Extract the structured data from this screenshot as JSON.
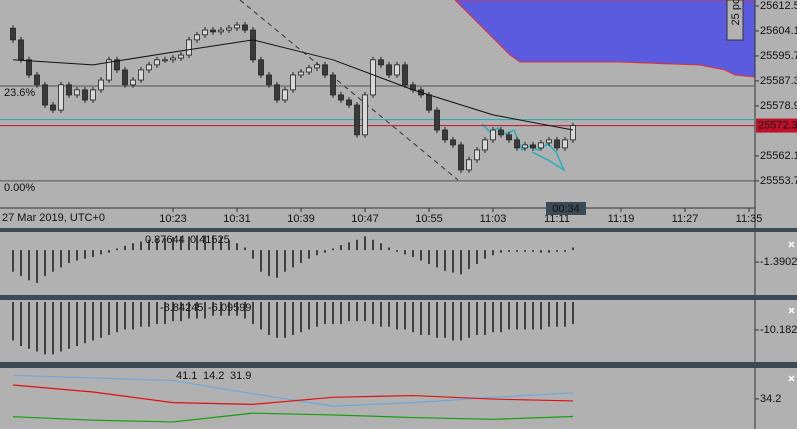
{
  "chart_data": [
    {
      "type": "candlestick",
      "date_label": "27 Mar 2019, UTC+0",
      "x": [
        0,
        1,
        2,
        3,
        4,
        5,
        6,
        7,
        8,
        9,
        10,
        11,
        12,
        13,
        14,
        15,
        16,
        17,
        18,
        19,
        20,
        21,
        22,
        23,
        24,
        25,
        26,
        27,
        28,
        29,
        30,
        31,
        32,
        33,
        34,
        35,
        36,
        37,
        38,
        39,
        40,
        41,
        42,
        43,
        44,
        45,
        46,
        47,
        48,
        49,
        50,
        51,
        52,
        53,
        54,
        55,
        56,
        57,
        58,
        59,
        60,
        61,
        62,
        63,
        64,
        65,
        66,
        67,
        68,
        69,
        70
      ],
      "open": [
        25605.0,
        25601.1,
        25594.4,
        25589.3,
        25586.0,
        25579.2,
        25577.5,
        25586.0,
        25582.6,
        25584.3,
        25580.9,
        25584.3,
        25587.6,
        25594.4,
        25591.0,
        25586.0,
        25587.6,
        25591.0,
        25592.7,
        25594.4,
        25594.4,
        25595.0,
        25596.0,
        25601.1,
        25602.8,
        25604.4,
        25603.8,
        25604.4,
        25605.1,
        25606.1,
        25604.4,
        25594.4,
        25589.3,
        25586.0,
        25580.9,
        25584.3,
        25589.3,
        25590.3,
        25591.7,
        25592.7,
        25589.3,
        25582.6,
        25580.9,
        25579.2,
        25569.2,
        25582.6,
        25594.4,
        25592.7,
        25589.3,
        25592.7,
        25586.0,
        25584.3,
        25582.6,
        25577.5,
        25570.8,
        25567.5,
        25565.8,
        25557.4,
        25560.8,
        25564.1,
        25567.5,
        25570.8,
        25569.2,
        25567.5,
        25564.8,
        25565.8,
        25564.8,
        25566.5,
        25567.5,
        25564.8,
        25567.5
      ],
      "close": [
        25601.1,
        25594.4,
        25589.3,
        25586.0,
        25579.2,
        25577.5,
        25586.0,
        25582.6,
        25584.3,
        25580.9,
        25584.3,
        25587.6,
        25594.4,
        25591.0,
        25586.0,
        25587.6,
        25591.0,
        25592.7,
        25594.4,
        25594.4,
        25595.0,
        25596.0,
        25601.1,
        25602.8,
        25604.4,
        25603.8,
        25604.4,
        25605.1,
        25606.1,
        25604.4,
        25594.4,
        25589.3,
        25586.0,
        25580.9,
        25584.3,
        25589.3,
        25590.3,
        25591.7,
        25592.7,
        25589.3,
        25582.6,
        25580.9,
        25579.2,
        25569.2,
        25582.6,
        25594.4,
        25592.7,
        25589.3,
        25592.7,
        25586.0,
        25584.3,
        25582.6,
        25577.5,
        25570.8,
        25567.5,
        25565.8,
        25557.4,
        25560.8,
        25564.1,
        25567.5,
        25570.8,
        25569.2,
        25567.5,
        25564.8,
        25565.8,
        25564.8,
        25566.5,
        25567.5,
        25564.8,
        25567.5,
        25572.3
      ],
      "ma": {
        "x": [
          0,
          10,
          20,
          30,
          40,
          50,
          60,
          70
        ],
        "values": [
          25594.4,
          25592.7,
          25597.0,
          25601.1,
          25594.4,
          25584.3,
          25575.9,
          25570.8
        ]
      },
      "xlim": [
        -1.625,
        92.75
      ],
      "xticks": [
        {
          "value": 20,
          "label": "10:23"
        },
        {
          "value": 28,
          "label": "10:31"
        },
        {
          "value": 36,
          "label": "10:39"
        },
        {
          "value": 44,
          "label": "10:47"
        },
        {
          "value": 52,
          "label": "10:55"
        },
        {
          "value": 60,
          "label": "11:03"
        },
        {
          "value": 68,
          "label": "11:11"
        },
        {
          "value": 76,
          "label": "11:19"
        },
        {
          "value": 84,
          "label": "11:27"
        },
        {
          "value": 92,
          "label": "11:35"
        }
      ],
      "ylim": [
        25544.6,
        25614.5
      ],
      "yticks": [
        25612.5,
        25604.1,
        25595.7,
        25587.3,
        25578.9,
        25562.1,
        25553.7
      ],
      "last_price": 25572.3,
      "cyan_level": 25574.3,
      "fib_levels": [
        {
          "label": "23.6%",
          "price": 25585.6
        },
        {
          "label": "0.00%",
          "price": 25553.7
        }
      ],
      "cloud_label": "25 pc",
      "countdown": "00:34"
    },
    {
      "type": "histogram",
      "x": [
        0,
        1,
        2,
        3,
        4,
        5,
        6,
        7,
        8,
        9,
        10,
        11,
        12,
        13,
        14,
        15,
        16,
        17,
        18,
        19,
        20,
        21,
        22,
        23,
        24,
        25,
        26,
        27,
        28,
        29,
        30,
        31,
        32,
        33,
        34,
        35,
        36,
        37,
        38,
        39,
        40,
        41,
        42,
        43,
        44,
        45,
        46,
        47,
        48,
        49,
        50,
        51,
        52,
        53,
        54,
        55,
        56,
        57,
        58,
        59,
        60,
        61,
        62,
        63,
        64,
        65,
        66,
        67,
        68,
        69,
        70
      ],
      "values": [
        -2.5,
        -3,
        -3.5,
        -3.8,
        -3,
        -2.5,
        -2,
        -1.5,
        -1.2,
        -1,
        -0.8,
        -0.5,
        -0.3,
        0.2,
        0.5,
        0.8,
        1,
        1.2,
        1.3,
        1.4,
        1.5,
        1.6,
        1.6,
        1.7,
        1.7,
        1.6,
        1.5,
        1.2,
        0.8,
        0.3,
        -1,
        -2.5,
        -3,
        -3.2,
        -2.5,
        -2,
        -1.5,
        -1,
        -0.6,
        -0.3,
        0.2,
        0.6,
        0.9,
        1.2,
        1.6,
        1.2,
        0.8,
        0.3,
        -0.2,
        -0.5,
        -0.8,
        -1.2,
        -1.6,
        -2,
        -2.4,
        -2.6,
        -2.8,
        -2.2,
        -1.6,
        -1,
        -0.6,
        -0.3,
        -0.2,
        -0.2,
        -0.2,
        -0.2,
        -0.3,
        -0.3,
        -0.2,
        -0.2,
        0.3
      ],
      "color": "#1a1a1a",
      "xlim": [
        -1.625,
        92.75
      ],
      "ylim": [
        -5.2,
        2.1
      ],
      "yticks": [
        -1.39025
      ],
      "legend_values": [
        0.87644,
        0.41525
      ],
      "legend_colors": [
        "#1a1a1a",
        "#e01010"
      ]
    },
    {
      "type": "histogram",
      "x": [
        0,
        1,
        2,
        3,
        4,
        5,
        6,
        7,
        8,
        9,
        10,
        11,
        12,
        13,
        14,
        15,
        16,
        17,
        18,
        19,
        20,
        21,
        22,
        23,
        24,
        25,
        26,
        27,
        28,
        29,
        30,
        31,
        32,
        33,
        34,
        35,
        36,
        37,
        38,
        39,
        40,
        41,
        42,
        43,
        44,
        45,
        46,
        47,
        48,
        49,
        50,
        51,
        52,
        53,
        54,
        55,
        56,
        57,
        58,
        59,
        60,
        61,
        62,
        63,
        64,
        65,
        66,
        67,
        68,
        69,
        70
      ],
      "values": [
        -14,
        -16,
        -17,
        -18,
        -19,
        -19,
        -18,
        -17,
        -16,
        -15,
        -14,
        -13,
        -12,
        -11,
        -10,
        -10,
        -9,
        -9,
        -8,
        -8,
        -7,
        -7,
        -6,
        -6,
        -6,
        -5,
        -5,
        -5,
        -5,
        -6,
        -8,
        -10,
        -12,
        -13,
        -13,
        -12,
        -11,
        -10,
        -9,
        -8,
        -8,
        -8,
        -7,
        -7,
        -7,
        -8,
        -9,
        -9,
        -10,
        -10,
        -11,
        -12,
        -12,
        -13,
        -13,
        -14,
        -14,
        -13,
        -12,
        -12,
        -11,
        -11,
        -10,
        -10,
        -10,
        -10,
        -10,
        -9,
        -9,
        -9,
        -8
      ],
      "color": "#1a1a1a",
      "xlim": [
        -1.625,
        92.75
      ],
      "ylim": [
        -21.8,
        0.7
      ],
      "yticks": [
        {
          "value": -10.182,
          "label": "-10.1820"
        }
      ],
      "legend_values": [
        -8.84245,
        -6.09599
      ],
      "legend_colors": [
        "#1a1a1a",
        "#e01010"
      ]
    },
    {
      "type": "line",
      "x": [
        0,
        10,
        20,
        30,
        40,
        50,
        60,
        70
      ],
      "series": [
        {
          "color": "#6fa8dc",
          "values": [
            61,
            58,
            55,
            40,
            26,
            30,
            36,
            41.1
          ]
        },
        {
          "color": "#10a010",
          "values": [
            14,
            10,
            8,
            18,
            16,
            13,
            11,
            14.2
          ]
        },
        {
          "color": "#e01010",
          "values": [
            50,
            42,
            30,
            28,
            36,
            38,
            34,
            31.9
          ]
        }
      ],
      "xlim": [
        -1.625,
        92.75
      ],
      "ylim": [
        0,
        69.3
      ],
      "yticks": [
        34.2
      ],
      "legend_values": [
        41.1,
        14.2,
        31.9
      ],
      "legend_colors": [
        "#6fa8dc",
        "#10a010",
        "#e01010"
      ]
    }
  ]
}
